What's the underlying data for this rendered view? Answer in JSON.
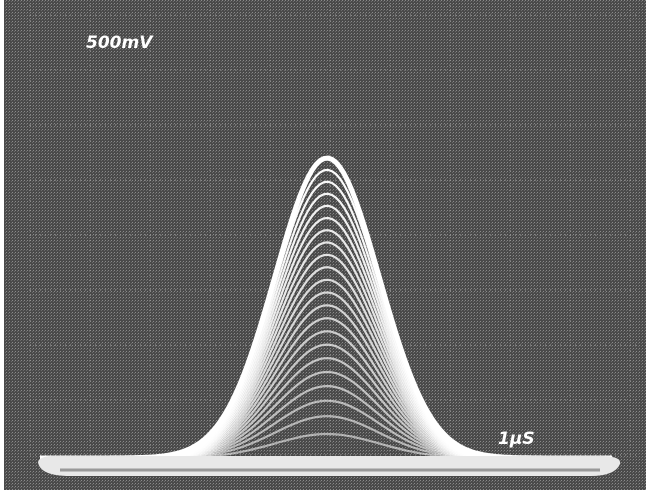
{
  "screen": {
    "vertical_scale": "500mV",
    "time_scale": "1µS"
  }
}
